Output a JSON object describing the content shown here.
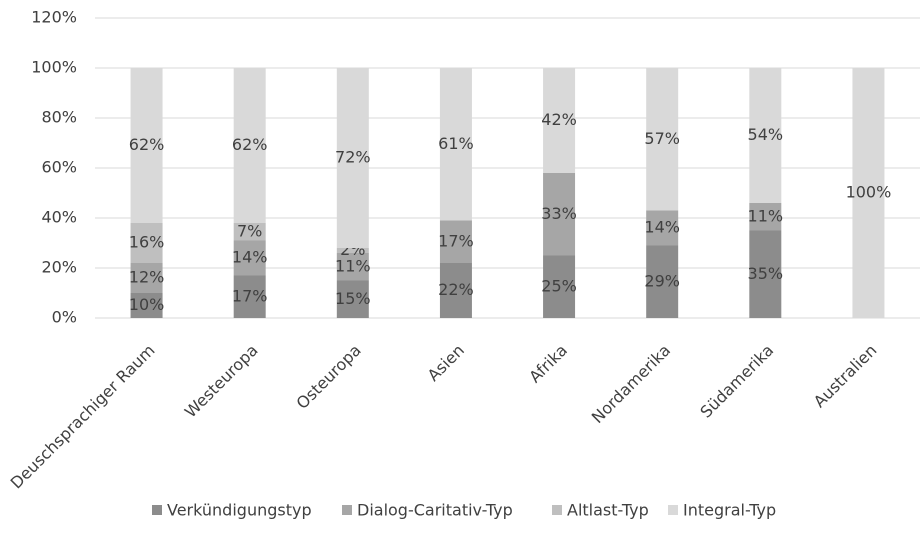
{
  "chart_data": {
    "type": "stacked-bar",
    "categories": [
      "Deuschsprachiger Raum",
      "Westeuropa",
      "Osteuropa",
      "Asien",
      "Afrika",
      "Nordamerika",
      "Südamerika",
      "Australien"
    ],
    "series": [
      {
        "name": "Verkündigungstyp",
        "color": "#8c8c8c",
        "values": [
          10,
          17,
          15,
          22,
          25,
          29,
          35,
          null
        ],
        "value_labels": [
          "10%",
          "17%",
          "15%",
          "22%",
          "25%",
          "29%",
          "35%",
          null
        ]
      },
      {
        "name": "Dialog-Caritativ-Typ",
        "color": "#a6a6a6",
        "values": [
          12,
          14,
          11,
          17,
          33,
          14,
          11,
          null
        ],
        "value_labels": [
          "12%",
          "14%",
          "11%",
          "17%",
          "33%",
          "14%",
          "11%",
          null
        ]
      },
      {
        "name": "Altlast-Typ",
        "color": "#bfbfbf",
        "values": [
          16,
          7,
          2,
          null,
          null,
          null,
          null,
          null
        ],
        "value_labels": [
          "16%",
          "7%",
          "2%",
          null,
          null,
          null,
          null,
          null
        ]
      },
      {
        "name": "Integral-Typ",
        "color": "#d9d9d9",
        "values": [
          62,
          62,
          72,
          61,
          42,
          57,
          54,
          100
        ],
        "value_labels": [
          "62%",
          "62%",
          "72%",
          "61%",
          "42%",
          "57%",
          "54%",
          "100%"
        ]
      }
    ],
    "ylim": [
      0,
      120
    ],
    "yticks": [
      {
        "value": 0,
        "label": "0%"
      },
      {
        "value": 20,
        "label": "20%"
      },
      {
        "value": 40,
        "label": "40%"
      },
      {
        "value": 60,
        "label": "60%"
      },
      {
        "value": 80,
        "label": "80%"
      },
      {
        "value": 100,
        "label": "100%"
      },
      {
        "value": 120,
        "label": "120%"
      }
    ],
    "grid": true,
    "legend": "bottom"
  }
}
